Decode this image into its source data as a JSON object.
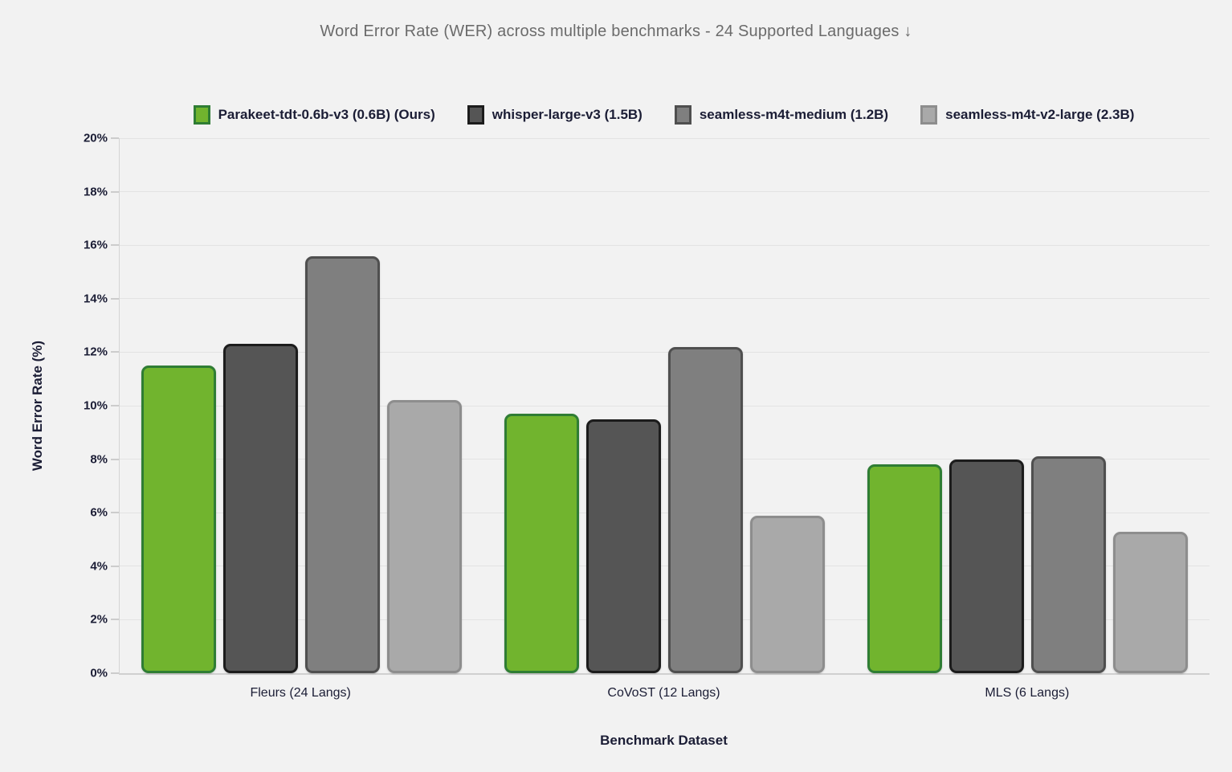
{
  "page": {
    "background": "#f2f2f2",
    "text_color": "#1b1d35",
    "title_color": "#6b6b6b",
    "gridline_color": "#e3e3e3",
    "axis_line_color": "#d0d0d0"
  },
  "chart_data": {
    "type": "bar",
    "title": "Word Error Rate (WER) across multiple benchmarks - 24 Supported Languages ↓",
    "xlabel": "Benchmark Dataset",
    "ylabel": "Word Error Rate (%)",
    "ylim": [
      0,
      20
    ],
    "ytick_step": 2,
    "ytick_suffix": "%",
    "grid": true,
    "legend_position": "top",
    "categories": [
      "Fleurs (24 Langs)",
      "CoVoST (12 Langs)",
      "MLS (6 Langs)"
    ],
    "series": [
      {
        "name": "Parakeet-tdt-0.6b-v3 (0.6B) (Ours)",
        "values": [
          11.5,
          9.7,
          7.8
        ],
        "fill": "#71b42e",
        "border": "#2f7d34"
      },
      {
        "name": "whisper-large-v3 (1.5B)",
        "values": [
          12.3,
          9.5,
          8.0
        ],
        "fill": "#555555",
        "border": "#1c1c1c"
      },
      {
        "name": "seamless-m4t-medium (1.2B)",
        "values": [
          15.6,
          12.2,
          8.1
        ],
        "fill": "#7f7f7f",
        "border": "#4f4f4f"
      },
      {
        "name": "seamless-m4t-v2-large (2.3B)",
        "values": [
          10.2,
          5.9,
          5.3
        ],
        "fill": "#a9a9a9",
        "border": "#8d8d8d"
      }
    ]
  }
}
